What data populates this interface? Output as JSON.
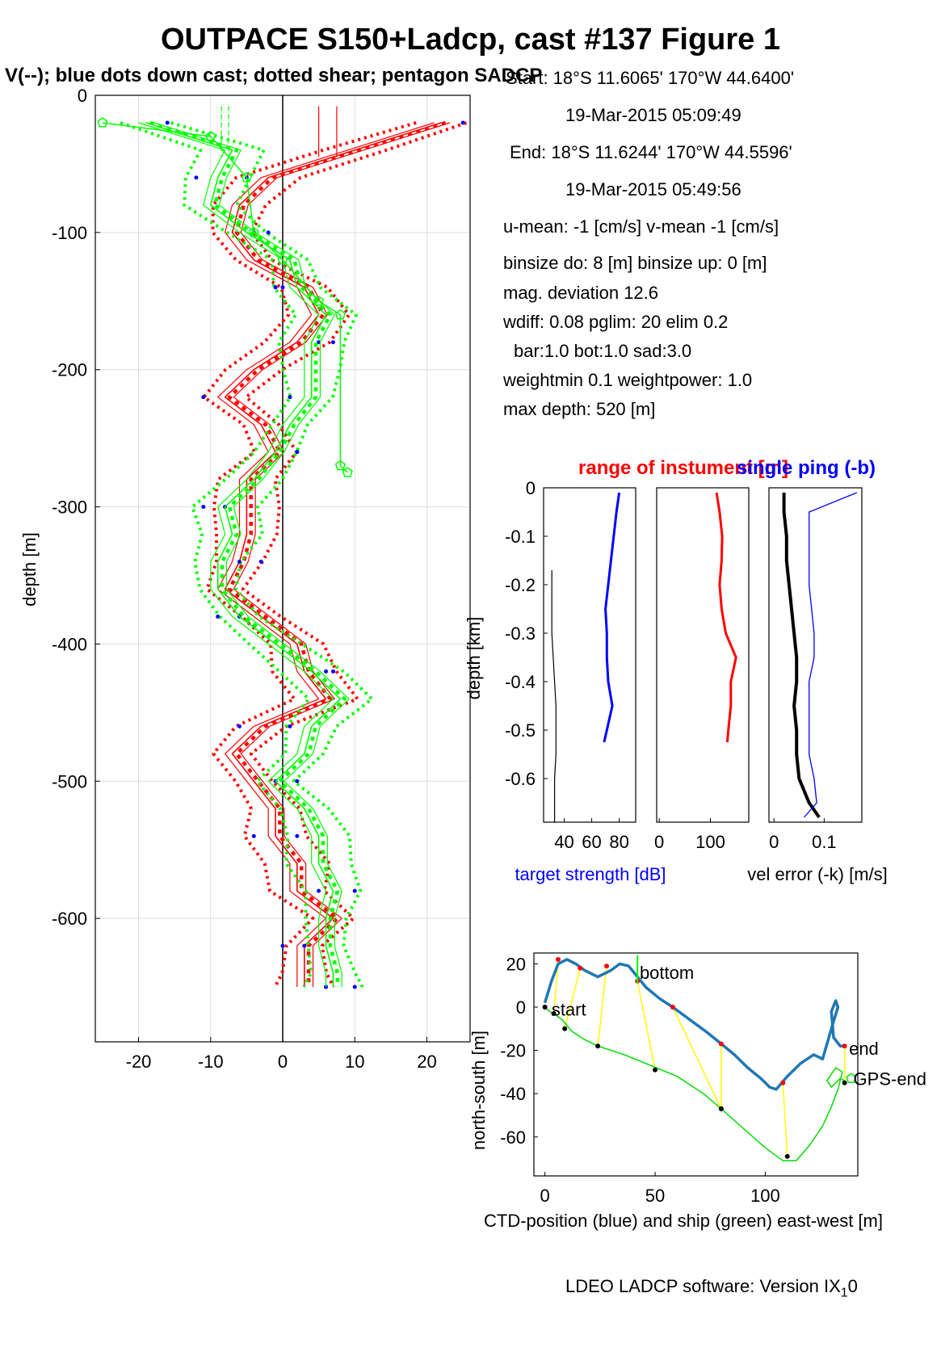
{
  "title": "OUTPACE S150+Ladcp, cast #137  Figure 1",
  "subtitle": "V(--); blue dots down cast; dotted shear; pentagon SADCP",
  "info_lines": [
    "Start:  18°S 11.6065'      170°W 44.6400'",
    "19-Mar-2015 05:09:49",
    "End:  18°S 11.6244'      170°W 44.5596'",
    "19-Mar-2015 05:49:56",
    "u-mean:  -1 [cm/s]     v-mean  -1 [cm/s]",
    "binsize do: 8 [m]  binsize up:  0 [m]",
    "mag. deviation 12.6",
    "wdiff: 0.08  pglim: 20  elim 0.2",
    "bar:1.0 bot:1.0 sad:3.0",
    "weightmin 0.1  weightpower: 1.0",
    "max depth: 520 [m]"
  ],
  "footer": "LDEO LADCP software: Version IX",
  "footer_sub": "1",
  "footer_end": "0",
  "colors": {
    "u": "#ff0000",
    "v": "#00ff00",
    "down": "#0000ff",
    "ctd": "#1f77b4",
    "ship": "#00dd00",
    "link": "#ffff00"
  },
  "chart_data": [
    {
      "type": "line",
      "name": "velocity profile",
      "ylabel": "depth [m]",
      "xlabel": "",
      "xlim": [
        -26,
        26
      ],
      "ylim": [
        -690,
        0
      ],
      "xticks": [
        -20,
        -10,
        0,
        10,
        20
      ],
      "yticks": [
        0,
        -100,
        -200,
        -300,
        -400,
        -500,
        -600
      ],
      "grid": true,
      "depth": [
        -20,
        -40,
        -60,
        -80,
        -100,
        -120,
        -140,
        -160,
        -180,
        -200,
        -220,
        -240,
        -260,
        -280,
        -300,
        -320,
        -340,
        -360,
        -380,
        -400,
        -420,
        -440,
        -460,
        -480,
        -500,
        -520,
        -540,
        -560,
        -580,
        -600,
        -620,
        -640,
        -650
      ],
      "series": [
        {
          "name": "U",
          "color": "#ff0000",
          "values": [
            22,
            10,
            -2,
            -6,
            -7,
            -4,
            3,
            5,
            2,
            -4,
            -8,
            -3,
            -1,
            -5,
            -5,
            -5,
            -6,
            -8,
            -3,
            2,
            3,
            6,
            -3,
            -7,
            -4,
            -1,
            -1,
            2,
            2,
            7,
            3,
            3,
            3
          ]
        },
        {
          "name": "V",
          "color": "#00ff00",
          "values": [
            -19,
            -7,
            -9,
            -10,
            -5,
            1,
            2,
            6,
            4,
            4,
            4,
            1,
            -1,
            -4,
            -8,
            -7,
            -9,
            -9,
            -6,
            -1,
            4,
            8,
            4,
            3,
            -1,
            3,
            5,
            5,
            7,
            6,
            6,
            7,
            7
          ]
        }
      ],
      "sadcp_v": [
        [
          -25,
          -20
        ],
        [
          -10,
          -30
        ],
        [
          -5,
          -60
        ],
        [
          -4,
          -100
        ],
        [
          0,
          -120
        ],
        [
          5,
          -150
        ],
        [
          8,
          -160
        ],
        [
          8,
          -270
        ],
        [
          9,
          -275
        ]
      ]
    },
    {
      "type": "line",
      "name": "target strength",
      "xlabel": "target strength [dB]",
      "ylabel": "depth [km]",
      "xlim": [
        25,
        92
      ],
      "ylim": [
        -0.69,
        0
      ],
      "xticks": [
        40,
        60,
        80
      ],
      "yticks": [
        0,
        -0.1,
        -0.2,
        -0.3,
        -0.4,
        -0.5,
        -0.6
      ],
      "depth": [
        -0.01,
        -0.05,
        -0.1,
        -0.15,
        -0.2,
        -0.25,
        -0.3,
        -0.35,
        -0.4,
        -0.45,
        -0.5,
        -0.525
      ],
      "values": [
        80,
        78,
        76,
        74,
        72,
        70,
        71,
        71,
        72,
        75,
        71,
        69
      ],
      "instrument_range": {
        "depth": [
          -0.17,
          -0.3,
          -0.45,
          -0.55,
          -0.6,
          -0.69
        ],
        "values": [
          31,
          31,
          34,
          34,
          33,
          33
        ]
      }
    },
    {
      "type": "line",
      "name": "range of instrument",
      "title": "range of instument [m]",
      "xlim": [
        -5,
        175
      ],
      "xticks": [
        0,
        100
      ],
      "depth": [
        -0.01,
        -0.05,
        -0.1,
        -0.15,
        -0.2,
        -0.25,
        -0.3,
        -0.35,
        -0.4,
        -0.45,
        -0.5,
        -0.525
      ],
      "values": [
        112,
        118,
        123,
        122,
        118,
        122,
        130,
        150,
        140,
        140,
        135,
        133
      ]
    },
    {
      "type": "line",
      "name": "velocity error",
      "title": "single ping (-b)",
      "xlabel": "vel error (-k) [m/s]",
      "xlim": [
        -0.01,
        0.175
      ],
      "xticks": [
        0,
        0.1
      ],
      "depth": [
        -0.01,
        -0.05,
        -0.1,
        -0.15,
        -0.2,
        -0.25,
        -0.3,
        -0.35,
        -0.4,
        -0.45,
        -0.5,
        -0.55,
        -0.6,
        -0.65,
        -0.68
      ],
      "series": [
        {
          "name": "vel error (-k)",
          "color": "#000000",
          "values": [
            0.02,
            0.02,
            0.025,
            0.025,
            0.03,
            0.035,
            0.04,
            0.045,
            0.045,
            0.04,
            0.045,
            0.045,
            0.05,
            0.07,
            0.09
          ]
        },
        {
          "name": "single ping (-b)",
          "color": "#0000ff",
          "values": [
            0.165,
            0.07,
            0.07,
            0.07,
            0.07,
            0.075,
            0.08,
            0.08,
            0.07,
            0.07,
            0.07,
            0.07,
            0.08,
            0.085,
            0.06
          ]
        }
      ]
    },
    {
      "type": "line",
      "name": "track",
      "xlabel": "CTD-position (blue) and ship (green) east-west [m]",
      "ylabel": "north-south [m]",
      "xlim": [
        -5,
        142
      ],
      "ylim": [
        -78,
        25
      ],
      "xticks": [
        0,
        50,
        100
      ],
      "yticks": [
        20,
        0,
        -20,
        -40,
        -60
      ],
      "ctd": {
        "x": [
          0,
          3,
          6,
          10,
          14,
          18,
          24,
          30,
          34,
          38,
          42,
          46,
          52,
          58,
          66,
          74,
          80,
          86,
          92,
          98,
          102,
          105,
          110,
          116,
          122,
          126,
          130,
          133,
          132,
          130,
          131,
          134,
          137
        ],
        "y": [
          2,
          12,
          20,
          22,
          20,
          17,
          14,
          17,
          20,
          19,
          14,
          9,
          4,
          0,
          -6,
          -12,
          -17,
          -22,
          -28,
          -33,
          -37,
          -38,
          -32,
          -26,
          -22,
          -24,
          -10,
          0,
          3,
          -2,
          -14,
          -18,
          -18
        ]
      },
      "ship": {
        "x": [
          0,
          2,
          4,
          8,
          12,
          18,
          24,
          36,
          48,
          60,
          72,
          80,
          90,
          100,
          108,
          114,
          120,
          126,
          130,
          133,
          135,
          132,
          128,
          130,
          134,
          136
        ],
        "y": [
          0,
          -2,
          -3,
          -6,
          -11,
          -15,
          -18,
          -22,
          -27,
          -32,
          -40,
          -47,
          -56,
          -65,
          -71,
          -71,
          -64,
          -55,
          -46,
          -38,
          -30,
          -28,
          -34,
          -37,
          -33,
          -34
        ]
      },
      "links": [
        [
          0,
          0,
          0,
          0
        ],
        [
          6,
          22,
          4,
          -3
        ],
        [
          16,
          18,
          9,
          -10
        ],
        [
          28,
          19,
          24,
          -18
        ],
        [
          42,
          12,
          50,
          -29
        ],
        [
          58,
          0,
          80,
          -47
        ],
        [
          80,
          -17,
          80,
          -47
        ],
        [
          108,
          -35,
          110,
          -69
        ],
        [
          136,
          -18,
          136,
          -35
        ]
      ],
      "labels": {
        "start": "start",
        "bottom": "bottom",
        "end": "end",
        "gps_end": "GPS-end"
      }
    }
  ]
}
